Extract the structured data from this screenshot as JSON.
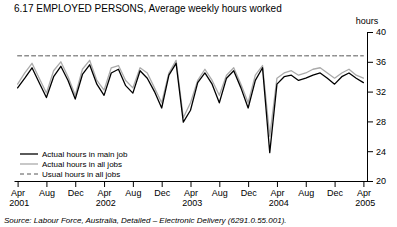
{
  "chart_data": {
    "type": "line",
    "title": "6.17   EMPLOYED PERSONS, Average weekly hours worked",
    "ylabel": "hours",
    "source": "Source:  Labour Force, Australia, Detailed – Electronic Delivery (6291.0.55.001).",
    "categories": [
      "Apr 2001",
      null,
      null,
      null,
      "Aug",
      null,
      null,
      null,
      "Dec",
      null,
      null,
      null,
      "Apr 2002",
      null,
      null,
      null,
      "Aug",
      null,
      null,
      null,
      "Dec",
      null,
      null,
      null,
      "Apr 2003",
      null,
      null,
      null,
      "Aug",
      null,
      null,
      null,
      "Dec",
      null,
      null,
      null,
      "Apr 2004",
      null,
      null,
      null,
      "Aug",
      null,
      null,
      null,
      "Dec",
      null,
      null,
      null,
      "Apr 2005"
    ],
    "series": [
      {
        "name": "Actual hours in main job",
        "color": "#000000",
        "line_style": "solid",
        "values": [
          32.5,
          33.8,
          35.2,
          33.2,
          31.2,
          34.0,
          35.4,
          33.5,
          31.0,
          34.3,
          35.6,
          33.0,
          31.5,
          34.5,
          35.0,
          32.8,
          31.8,
          34.8,
          33.8,
          32.0,
          29.8,
          34.2,
          35.8,
          27.9,
          29.5,
          33.2,
          34.5,
          33.0,
          30.5,
          33.8,
          34.8,
          32.5,
          29.8,
          33.5,
          35.2,
          23.8,
          33.0,
          34.0,
          34.2,
          33.5,
          33.8,
          34.2,
          34.5,
          33.8,
          33.0,
          34.0,
          34.5,
          33.8,
          33.2
        ]
      },
      {
        "name": "Actual hours in all jobs",
        "color": "#aaaaaa",
        "line_style": "solid",
        "values": [
          33.0,
          34.5,
          35.8,
          33.8,
          31.8,
          34.8,
          36.0,
          34.0,
          31.5,
          35.0,
          36.2,
          33.5,
          32.2,
          35.2,
          35.5,
          33.5,
          32.5,
          35.2,
          34.5,
          32.5,
          30.5,
          34.5,
          36.2,
          28.5,
          30.5,
          33.5,
          35.0,
          33.5,
          31.5,
          34.2,
          35.2,
          33.0,
          30.5,
          34.2,
          35.5,
          26.0,
          33.8,
          34.5,
          34.8,
          34.2,
          34.5,
          35.0,
          35.2,
          34.5,
          33.8,
          34.5,
          35.0,
          34.2,
          33.8
        ]
      },
      {
        "name": "Usual hours in all jobs",
        "color": "#555555",
        "line_style": "dashed",
        "values": [
          36.8,
          36.8,
          36.8,
          36.8,
          36.8,
          36.8,
          36.8,
          36.8,
          36.8,
          36.8,
          36.8,
          36.8,
          36.8,
          36.8,
          36.8,
          36.8,
          36.8,
          36.8,
          36.8,
          36.8,
          36.8,
          36.8,
          36.8,
          36.8,
          36.8,
          36.8,
          36.8,
          36.8,
          36.8,
          36.8,
          36.8,
          36.8,
          36.8,
          36.8,
          36.8,
          36.8,
          36.8,
          36.8,
          36.8,
          36.8,
          36.8,
          36.8,
          36.8,
          36.8,
          36.8,
          36.8,
          36.8,
          36.8,
          36.8
        ]
      }
    ],
    "ylim": [
      20,
      40
    ],
    "yticks": [
      20,
      24,
      28,
      32,
      36,
      40
    ],
    "grid": false,
    "legend": "lower left"
  }
}
